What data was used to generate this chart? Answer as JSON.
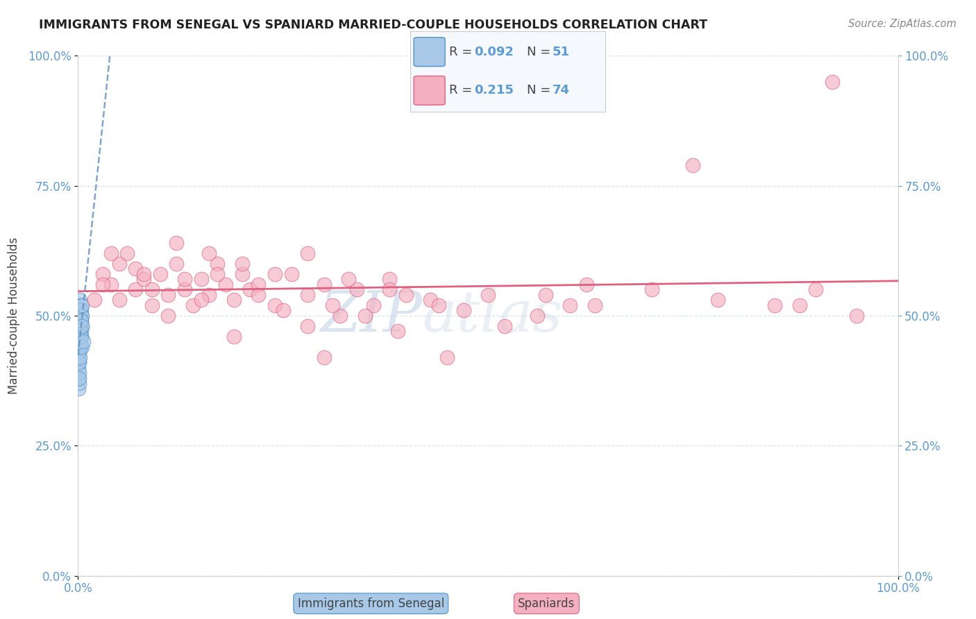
{
  "title": "IMMIGRANTS FROM SENEGAL VS SPANIARD MARRIED-COUPLE HOUSEHOLDS CORRELATION CHART",
  "source": "Source: ZipAtlas.com",
  "ylabel": "Married-couple Households",
  "blue_label": "Immigrants from Senegal",
  "pink_label": "Spaniards",
  "blue_R": 0.092,
  "blue_N": 51,
  "pink_R": 0.215,
  "pink_N": 74,
  "blue_color": "#a8c8e8",
  "pink_color": "#f4b0c0",
  "blue_edge_color": "#5090c8",
  "pink_edge_color": "#e06080",
  "blue_line_color": "#6090c0",
  "pink_line_color": "#e06080",
  "axis_color": "#5b9bd5",
  "title_color": "#222222",
  "watermark": "ZIPatlas",
  "grid_color": "#d8e4f0",
  "blue_scatter_x": [
    0.05,
    0.08,
    0.1,
    0.1,
    0.12,
    0.12,
    0.13,
    0.15,
    0.15,
    0.16,
    0.18,
    0.2,
    0.2,
    0.22,
    0.22,
    0.25,
    0.25,
    0.28,
    0.3,
    0.3,
    0.32,
    0.35,
    0.35,
    0.38,
    0.4,
    0.4,
    0.42,
    0.45,
    0.48,
    0.5,
    0.05,
    0.06,
    0.07,
    0.08,
    0.09,
    0.1,
    0.11,
    0.12,
    0.13,
    0.15,
    0.18,
    0.2,
    0.22,
    0.25,
    0.28,
    0.3,
    0.35,
    0.4,
    0.45,
    0.5,
    0.6
  ],
  "blue_scatter_y": [
    44,
    46,
    43,
    48,
    47,
    50,
    45,
    52,
    49,
    51,
    46,
    48,
    44,
    50,
    47,
    53,
    46,
    49,
    51,
    44,
    48,
    50,
    46,
    52,
    47,
    49,
    51,
    48,
    50,
    52,
    38,
    40,
    36,
    42,
    37,
    41,
    39,
    43,
    38,
    41,
    44,
    46,
    42,
    48,
    45,
    47,
    49,
    46,
    48,
    44,
    45
  ],
  "pink_scatter_x": [
    2,
    3,
    4,
    5,
    6,
    7,
    8,
    9,
    10,
    11,
    12,
    13,
    14,
    15,
    16,
    17,
    18,
    19,
    20,
    21,
    22,
    24,
    26,
    28,
    30,
    32,
    34,
    36,
    38,
    40,
    3,
    5,
    7,
    9,
    11,
    13,
    15,
    17,
    19,
    22,
    25,
    28,
    31,
    35,
    39,
    43,
    47,
    52,
    57,
    62,
    4,
    8,
    12,
    16,
    20,
    24,
    28,
    33,
    38,
    44,
    50,
    56,
    63,
    70,
    78,
    85,
    90,
    92,
    95,
    30,
    45,
    60,
    75,
    88
  ],
  "pink_scatter_y": [
    53,
    58,
    56,
    60,
    62,
    55,
    57,
    52,
    58,
    54,
    60,
    55,
    52,
    57,
    54,
    60,
    56,
    53,
    58,
    55,
    56,
    52,
    58,
    54,
    56,
    50,
    55,
    52,
    57,
    54,
    56,
    53,
    59,
    55,
    50,
    57,
    53,
    58,
    46,
    54,
    51,
    48,
    52,
    50,
    47,
    53,
    51,
    48,
    54,
    56,
    62,
    58,
    64,
    62,
    60,
    58,
    62,
    57,
    55,
    52,
    54,
    50,
    52,
    55,
    53,
    52,
    55,
    95,
    50,
    42,
    42,
    52,
    79,
    52
  ],
  "xlim": [
    0,
    100
  ],
  "ylim": [
    0,
    100
  ],
  "yticks": [
    0,
    25,
    50,
    75,
    100
  ],
  "ytick_labels": [
    "0.0%",
    "25.0%",
    "50.0%",
    "75.0%",
    "100.0%"
  ],
  "xtick_labels": [
    "0.0%",
    "100.0%"
  ]
}
